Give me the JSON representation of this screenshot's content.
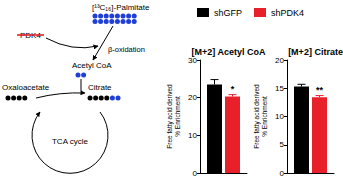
{
  "diagram": {
    "substrate": {
      "label": "[¹³C₁₆]-Palmitate",
      "labeled_carbons": 16
    },
    "enzyme": {
      "label": "PDK4",
      "knocked_down": true
    },
    "pathway": "β-oxidation",
    "nodes": [
      {
        "label": "Acetyl CoA",
        "unlabeled_carbons": 0,
        "labeled_carbons": 2
      },
      {
        "label": "Oxaloacetate",
        "unlabeled_carbons": 4,
        "labeled_carbons": 0
      },
      {
        "label": "Citrate",
        "unlabeled_carbons": 4,
        "labeled_carbons": 2
      }
    ],
    "cycle": "TCA cycle"
  },
  "chart_data": [
    {
      "type": "bar",
      "title": "[M+2] Acetyl CoA",
      "ylabel": [
        "Free fatty acid derived",
        "% Enrichment"
      ],
      "categories": [
        null
      ],
      "series": [
        {
          "name": "shGFP",
          "color": "#000000",
          "values": [
            23.5
          ],
          "error": [
            1.3
          ]
        },
        {
          "name": "shPDK4",
          "color": "#e8202a",
          "values": [
            20.3
          ],
          "error": [
            0.5
          ],
          "annotations": [
            "*"
          ]
        }
      ],
      "ylim": [
        0,
        30
      ],
      "yticks": [
        0,
        10,
        20,
        30
      ],
      "tick_labels": "y",
      "legend": "top"
    },
    {
      "type": "bar",
      "title": "[M+2] Citrate",
      "ylabel": [
        "Free fatty acid derived",
        "% Enrichment"
      ],
      "categories": [
        null
      ],
      "series": [
        {
          "name": "shGFP",
          "color": "#000000",
          "values": [
            15.3
          ],
          "error": [
            0.4
          ]
        },
        {
          "name": "shPDK4",
          "color": "#e8202a",
          "values": [
            13.4
          ],
          "error": [
            0.3
          ],
          "annotations": [
            "**"
          ]
        }
      ],
      "ylim": [
        0,
        20
      ],
      "yticks": [
        0,
        5,
        10,
        15,
        20
      ],
      "tick_labels": "y"
    }
  ]
}
